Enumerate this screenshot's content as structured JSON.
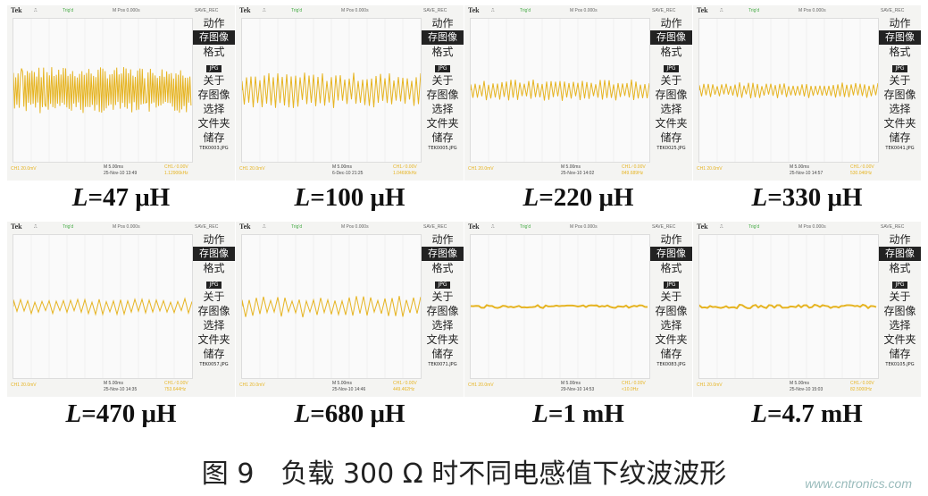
{
  "menu": {
    "items": [
      "动作",
      "存图像",
      "格式",
      "JPG",
      "关于",
      "存图像",
      "选择",
      "文件夹",
      "储存"
    ]
  },
  "topbar": {
    "brand": "Tek",
    "trigger_state": "Trig'd",
    "mpos": "M Pos 0.000s",
    "mode": "SAVE_REC"
  },
  "bottombar": {
    "ch1_scale": "CH1 20.0mV",
    "timebase": "M 5.00ms",
    "trigger": "CH1 ∕ 0.00V"
  },
  "waveform_color": "#e6b422",
  "panels": [
    {
      "label_var": "L",
      "label_val": "=47 μH",
      "date": "25-Nov-10 13:49",
      "file": "TEK0003.JPG",
      "freq": "1.12906kHz",
      "ripple_divisions": 1.3,
      "density": "high"
    },
    {
      "label_var": "L",
      "label_val": "=100 μH",
      "date": "6-Dec-10 21:25",
      "file": "TEK0005.JPG",
      "freq": "1.04690kHz",
      "ripple_divisions": 1.0,
      "density": "medium"
    },
    {
      "label_var": "L",
      "label_val": "=220 μH",
      "date": "25-Nov-10 14:02",
      "file": "TEK0025.JPG",
      "freq": "849.689Hz",
      "ripple_divisions": 0.6,
      "density": "medium"
    },
    {
      "label_var": "L",
      "label_val": "=330 μH",
      "date": "25-Nov-10 14:57",
      "file": "TEK0041.JPG",
      "freq": "530.046Hz",
      "ripple_divisions": 0.45,
      "density": "medium"
    },
    {
      "label_var": "L",
      "label_val": "=470 μH",
      "date": "25-Nov-10 14:35",
      "file": "TEK0057.JPG",
      "freq": "753.644Hz",
      "ripple_divisions": 0.45,
      "density": "low"
    },
    {
      "label_var": "L",
      "label_val": "=680 μH",
      "date": "25-Nov-10 14:46",
      "file": "TEK0071.JPG",
      "freq": "449.462Hz",
      "ripple_divisions": 0.6,
      "density": "low"
    },
    {
      "label_var": "L",
      "label_val": "=1 mH",
      "date": "29-Nov-10 14:53",
      "file": "TEK0083.JPG",
      "freq": "<10.0Hz",
      "ripple_divisions": 0.08,
      "density": "flat"
    },
    {
      "label_var": "L",
      "label_val": "=4.7 mH",
      "date": "25-Nov-10 15:03",
      "file": "TEK0105.JPG",
      "freq": "82.5000Hz",
      "ripple_divisions": 0.1,
      "density": "flat"
    }
  ],
  "caption": "图 9　负载 300 Ω 时不同电感值下纹波波形",
  "watermark": "www.cntronics.com"
}
